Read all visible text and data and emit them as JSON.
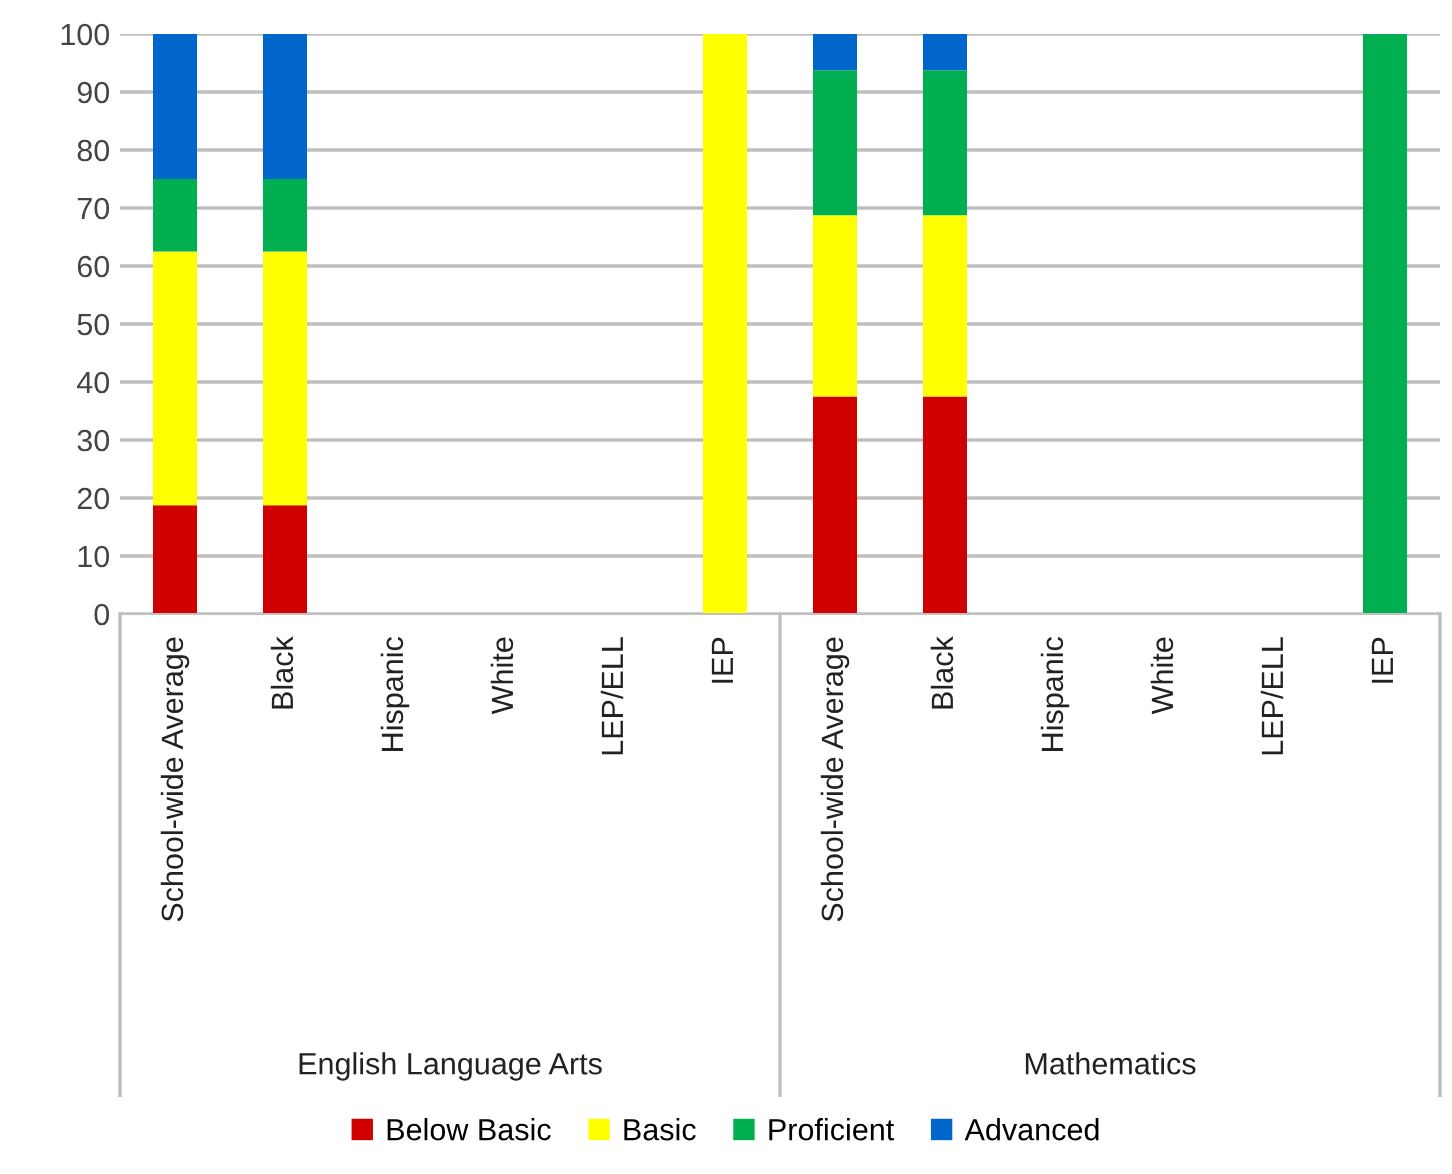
{
  "chart_data": {
    "type": "bar",
    "stacked": true,
    "categories": [
      "School-wide Average",
      "Black",
      "Hispanic",
      "White",
      "LEP/ELL",
      "IEP",
      "School-wide Average",
      "Black",
      "Hispanic",
      "White",
      "LEP/ELL",
      "IEP"
    ],
    "series": [
      {
        "name": "Below Basic",
        "color": "#d00000",
        "values": [
          18.75,
          18.75,
          null,
          null,
          null,
          0,
          37.5,
          37.5,
          null,
          null,
          null,
          0
        ]
      },
      {
        "name": "Basic",
        "color": "#ffff00",
        "values": [
          43.75,
          43.75,
          null,
          null,
          null,
          100,
          31.25,
          31.25,
          null,
          null,
          null,
          0
        ]
      },
      {
        "name": "Proficient",
        "color": "#00b050",
        "values": [
          12.5,
          12.5,
          null,
          null,
          null,
          0,
          25,
          25,
          null,
          null,
          null,
          100
        ]
      },
      {
        "name": "Advanced",
        "color": "#0066cc",
        "values": [
          25,
          25,
          null,
          null,
          null,
          0,
          6.25,
          6.25,
          null,
          null,
          null,
          0
        ]
      }
    ],
    "annotations": [
      "English Language Arts",
      "Mathematics"
    ],
    "ylim": [
      0,
      100
    ],
    "yticks": [
      0,
      10,
      20,
      30,
      40,
      50,
      60,
      70,
      80,
      90,
      100
    ],
    "grid": "y",
    "legend": "bottom"
  }
}
